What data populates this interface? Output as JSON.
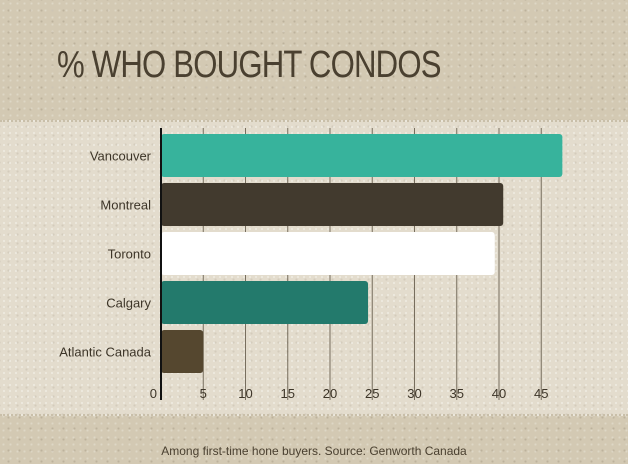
{
  "chart_data": {
    "type": "bar",
    "orientation": "horizontal",
    "title": "% WHO BOUGHT CONDOS",
    "categories": [
      "Vancouver",
      "Montreal",
      "Toronto",
      "Calgary",
      "Atlantic Canada"
    ],
    "values": [
      47.5,
      40.5,
      39.5,
      24.5,
      5
    ],
    "colors": [
      "#37b39c",
      "#423a2e",
      "#ffffff",
      "#237a6c",
      "#55472f"
    ],
    "x_ticks": [
      "0",
      "5",
      "10",
      "15",
      "20",
      "25",
      "30",
      "35",
      "40",
      "45"
    ],
    "xlim": [
      0,
      48
    ],
    "grid": "vertical",
    "caption": "Among first-time hone buyers. Source: Genworth Canada"
  }
}
